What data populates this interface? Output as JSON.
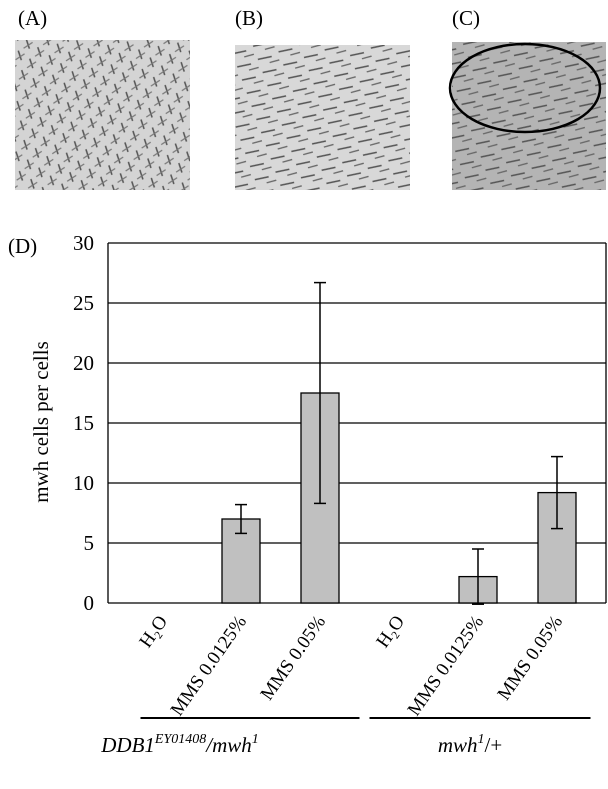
{
  "panels": [
    "(A)",
    "(B)",
    "(C)"
  ],
  "chart_data": {
    "type": "bar",
    "panel": "(D)",
    "y_label": "mwh cells per cells",
    "categories": [
      "H₂O",
      "MMS 0.0125%",
      "MMS 0.05%",
      "H₂O",
      "MMS 0.0125%",
      "MMS 0.05%"
    ],
    "values": [
      0,
      7,
      17.5,
      0,
      2.2,
      9.2
    ],
    "errors": [
      null,
      1.2,
      9.2,
      null,
      2.3,
      3.0
    ],
    "groups": [
      [
        "DDB1",
        "EY01408",
        "/mwh",
        "1"
      ],
      [
        "mwh",
        "1",
        "/+"
      ]
    ],
    "color": "#c0c0c0",
    "ylim": [
      0,
      30
    ],
    "yticks": [
      0,
      5,
      10,
      15,
      20,
      25,
      30
    ],
    "grid": true
  }
}
